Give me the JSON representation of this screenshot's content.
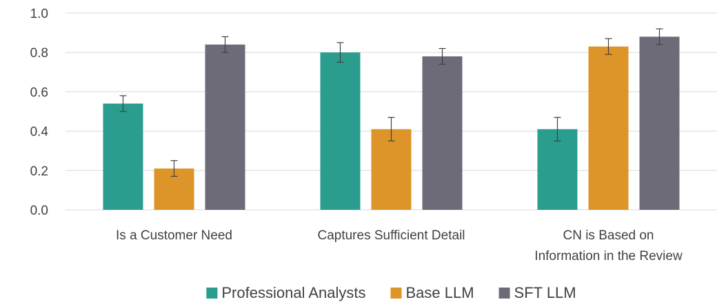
{
  "chart_data": {
    "type": "bar",
    "title": "",
    "xlabel": "",
    "ylabel": "",
    "ylim": [
      0,
      1.0
    ],
    "y_ticks": [
      "0.0",
      "0.2",
      "0.4",
      "0.6",
      "0.8",
      "1.0"
    ],
    "grid": true,
    "legend_position": "bottom",
    "categories": [
      [
        "Is a Customer Need"
      ],
      [
        "Captures Sufficient Detail"
      ],
      [
        "CN is Based on",
        "Information in the Review"
      ]
    ],
    "series": [
      {
        "name": "Professional Analysts",
        "color": "#2a9d8f",
        "values": [
          0.54,
          0.8,
          0.41
        ],
        "errors": [
          0.04,
          0.05,
          0.06
        ]
      },
      {
        "name": "Base LLM",
        "color": "#dd9429",
        "values": [
          0.21,
          0.41,
          0.83
        ],
        "errors": [
          0.04,
          0.06,
          0.04
        ]
      },
      {
        "name": "SFT LLM",
        "color": "#6d6b78",
        "values": [
          0.84,
          0.78,
          0.88
        ],
        "errors": [
          0.04,
          0.04,
          0.04
        ]
      }
    ]
  }
}
